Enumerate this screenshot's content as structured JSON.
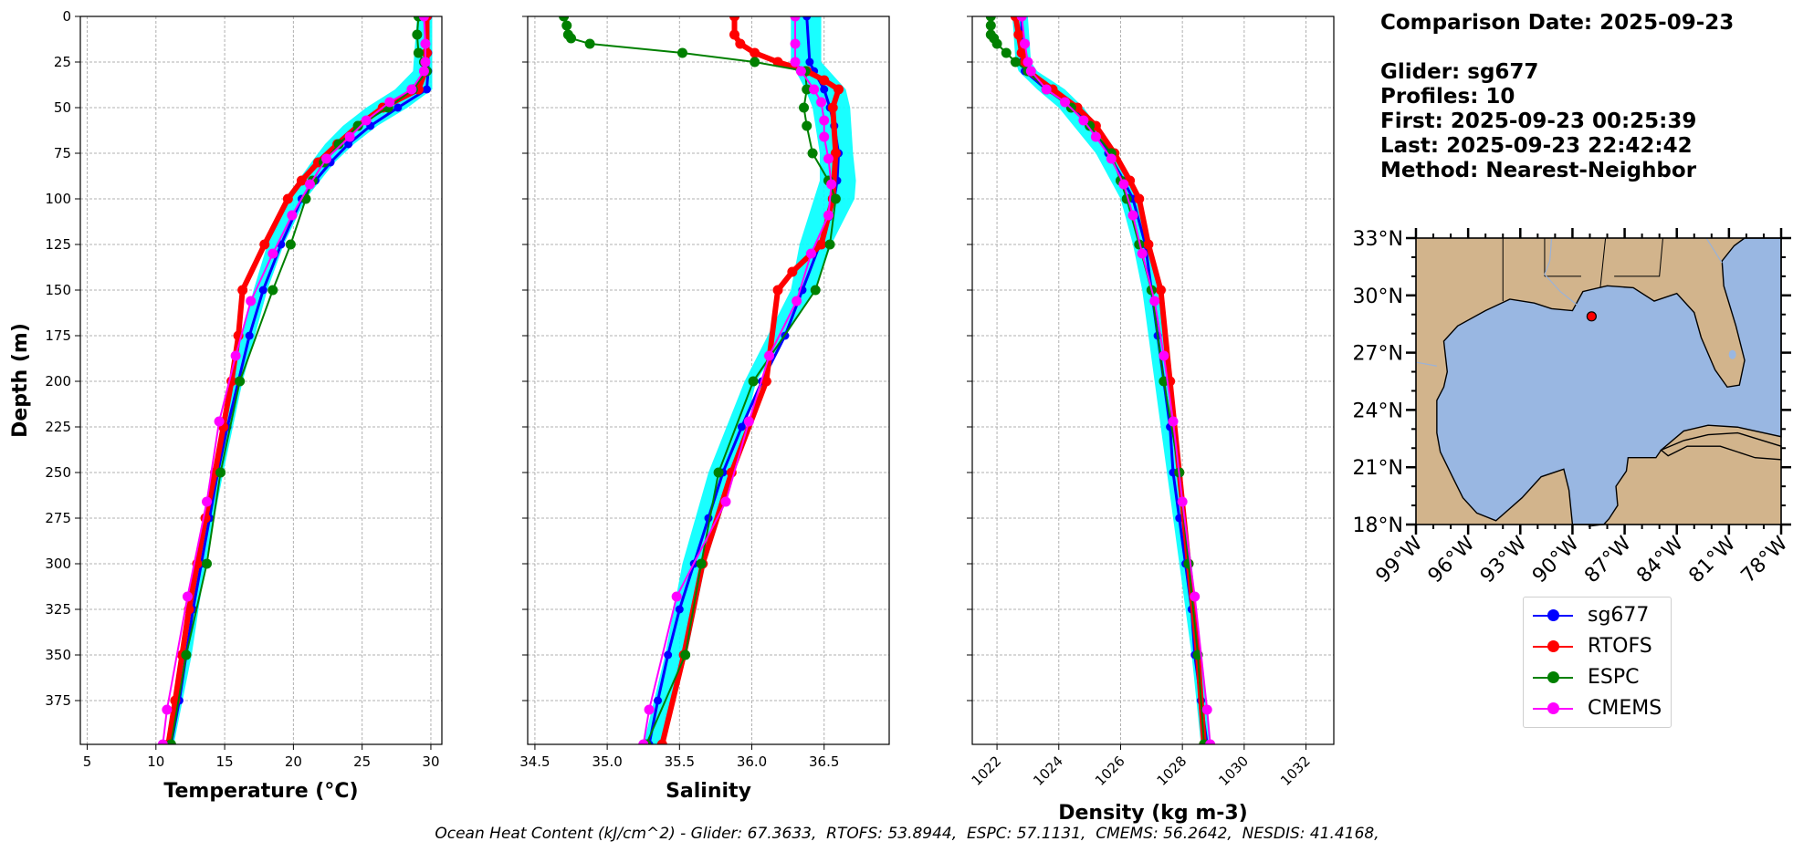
{
  "info": {
    "comparison_date": "Comparison Date: 2025-09-23",
    "glider": "Glider: sg677",
    "profiles": "Profiles: 10",
    "first": "First: 2025-09-23 00:25:39",
    "last": "Last: 2025-09-23 22:42:42",
    "method": "Method: Nearest-Neighbor"
  },
  "footer": "Ocean Heat Content (kJ/cm^2) - Glider: 67.3633,  RTOFS: 53.8944,  ESPC: 57.1131,  CMEMS: 56.2642,  NESDIS: 41.4168,",
  "legend": [
    {
      "name": "sg677",
      "color": "#0000ff"
    },
    {
      "name": "RTOFS",
      "color": "#ff0000"
    },
    {
      "name": "ESPC",
      "color": "#008000"
    },
    {
      "name": "CMEMS",
      "color": "#ff00ff"
    }
  ],
  "map": {
    "lat_ticks": [
      "33°N",
      "30°N",
      "27°N",
      "24°N",
      "21°N",
      "18°N"
    ],
    "lon_ticks": [
      "99°W",
      "96°W",
      "93°W",
      "90°W",
      "87°W",
      "84°W",
      "81°W",
      "78°W"
    ],
    "lon_range": [
      -99,
      -78
    ],
    "lat_range": [
      18,
      33
    ],
    "land_color": "#d2b48c",
    "ocean_color": "#99b7e2",
    "glider_position": {
      "lon": -88.9,
      "lat": 28.9
    }
  },
  "chart_data": [
    {
      "type": "line",
      "xlabel": "Temperature (°C)",
      "ylabel": "Depth (m)",
      "xlim": [
        4.5,
        30.8
      ],
      "ylim": [
        399,
        0
      ],
      "xticks": [
        5,
        10,
        15,
        20,
        25,
        30
      ],
      "yticks": [
        0,
        25,
        50,
        75,
        100,
        125,
        150,
        175,
        200,
        225,
        250,
        275,
        300,
        325,
        350,
        375
      ],
      "grid": true,
      "glider_envelope": {
        "depth": [
          0,
          30,
          40,
          50,
          60,
          70,
          80,
          100,
          125,
          150,
          200,
          250,
          300,
          350,
          399
        ],
        "min": [
          29.0,
          28.7,
          27.4,
          25.3,
          23.6,
          22.3,
          21.3,
          19.4,
          18.1,
          17.1,
          15.4,
          14.2,
          13.0,
          12.0,
          10.7
        ],
        "max": [
          30.1,
          30.1,
          30.1,
          28.3,
          26.1,
          24.4,
          23.0,
          20.9,
          19.3,
          18.1,
          16.3,
          14.9,
          13.6,
          12.6,
          11.3
        ]
      },
      "series": [
        {
          "name": "sg677",
          "depth": [
            0,
            20,
            30,
            40,
            50,
            60,
            70,
            80,
            90,
            100,
            125,
            150,
            175,
            200,
            225,
            250,
            275,
            300,
            325,
            350,
            375,
            399
          ],
          "values": [
            29.8,
            29.8,
            29.8,
            29.7,
            27.6,
            25.6,
            24.0,
            22.7,
            21.6,
            20.6,
            19.1,
            17.8,
            16.8,
            16.0,
            15.2,
            14.5,
            13.9,
            13.3,
            12.7,
            12.2,
            11.7,
            11.1
          ]
        },
        {
          "name": "RTOFS",
          "depth": [
            0,
            20,
            30,
            40,
            50,
            60,
            70,
            80,
            90,
            100,
            125,
            150,
            175,
            200,
            225,
            250,
            275,
            300,
            325,
            350,
            375,
            399
          ],
          "values": [
            29.7,
            29.7,
            29.6,
            29.1,
            26.5,
            24.7,
            23.2,
            21.8,
            20.6,
            19.6,
            17.9,
            16.3,
            16.0,
            15.5,
            14.9,
            14.3,
            13.6,
            13.0,
            12.4,
            11.9,
            11.4,
            10.9
          ]
        },
        {
          "name": "ESPC",
          "depth": [
            0,
            10,
            20,
            25,
            30,
            40,
            50,
            60,
            70,
            80,
            90,
            100,
            125,
            150,
            200,
            250,
            300,
            350,
            399
          ],
          "values": [
            29.1,
            29.0,
            29.1,
            29.5,
            29.7,
            28.7,
            26.9,
            24.7,
            23.3,
            22.2,
            21.4,
            20.9,
            19.8,
            18.5,
            16.1,
            14.7,
            13.7,
            12.2,
            11.1
          ]
        },
        {
          "name": "CMEMS",
          "depth": [
            0,
            15,
            25,
            30,
            40,
            47,
            57,
            66,
            78,
            92,
            109,
            130,
            156,
            186,
            222,
            266,
            318,
            380,
            399
          ],
          "values": [
            29.5,
            29.6,
            29.6,
            29.5,
            28.6,
            27.0,
            25.3,
            24.1,
            22.4,
            21.2,
            19.9,
            18.5,
            16.9,
            15.8,
            14.6,
            13.7,
            12.3,
            10.8,
            10.5
          ]
        }
      ]
    },
    {
      "type": "line",
      "xlabel": "Salinity",
      "ylabel": "",
      "xlim": [
        34.45,
        36.95
      ],
      "ylim": [
        399,
        0
      ],
      "xticks": [
        34.5,
        35.0,
        35.5,
        36.0,
        36.5
      ],
      "xticklabels": [
        "34.5",
        "35.0",
        "35.5",
        "36.0",
        "36.5"
      ],
      "grid": true,
      "glider_envelope": {
        "depth": [
          0,
          25,
          40,
          50,
          75,
          90,
          100,
          125,
          150,
          200,
          250,
          300,
          350,
          399
        ],
        "min": [
          36.27,
          36.27,
          36.37,
          36.42,
          36.47,
          36.47,
          36.43,
          36.33,
          36.27,
          35.95,
          35.7,
          35.52,
          35.4,
          35.25
        ],
        "max": [
          36.48,
          36.48,
          36.65,
          36.68,
          36.7,
          36.72,
          36.71,
          36.55,
          36.44,
          36.03,
          35.88,
          35.68,
          35.55,
          35.38
        ]
      },
      "series": [
        {
          "name": "sg677",
          "depth": [
            0,
            25,
            30,
            40,
            50,
            60,
            75,
            90,
            100,
            110,
            125,
            150,
            175,
            200,
            225,
            250,
            275,
            300,
            325,
            350,
            375,
            399
          ],
          "values": [
            36.38,
            36.4,
            36.43,
            36.5,
            36.54,
            36.57,
            36.6,
            36.59,
            36.57,
            36.53,
            36.47,
            36.35,
            36.23,
            36.07,
            35.93,
            35.8,
            35.7,
            35.6,
            35.5,
            35.42,
            35.35,
            35.29
          ]
        },
        {
          "name": "RTOFS",
          "depth": [
            0,
            10,
            15,
            20,
            25,
            30,
            35,
            40,
            50,
            75,
            100,
            125,
            140,
            150,
            200,
            250,
            300,
            350,
            399
          ],
          "values": [
            35.88,
            35.88,
            35.92,
            36.02,
            36.18,
            36.38,
            36.5,
            36.6,
            36.56,
            36.58,
            36.56,
            36.48,
            36.28,
            36.18,
            36.1,
            35.86,
            35.66,
            35.53,
            35.38
          ]
        },
        {
          "name": "ESPC",
          "depth": [
            0,
            5,
            10,
            12,
            15,
            20,
            25,
            30,
            40,
            50,
            60,
            75,
            90,
            100,
            125,
            150,
            200,
            250,
            300,
            350,
            399
          ],
          "values": [
            34.7,
            34.72,
            34.73,
            34.75,
            34.88,
            35.52,
            36.02,
            36.37,
            36.38,
            36.36,
            36.38,
            36.42,
            36.53,
            36.58,
            36.54,
            36.44,
            36.01,
            35.77,
            35.65,
            35.54,
            35.27
          ]
        },
        {
          "name": "CMEMS",
          "depth": [
            0,
            15,
            25,
            30,
            40,
            47,
            57,
            66,
            78,
            92,
            109,
            130,
            156,
            186,
            222,
            266,
            318,
            380,
            399
          ],
          "values": [
            36.3,
            36.3,
            36.3,
            36.34,
            36.43,
            36.48,
            36.5,
            36.5,
            36.53,
            36.55,
            36.53,
            36.41,
            36.31,
            36.12,
            35.98,
            35.82,
            35.48,
            35.29,
            35.25
          ]
        }
      ]
    },
    {
      "type": "line",
      "xlabel": "Density (kg m-3)",
      "ylabel": "",
      "xlim": [
        1021.2,
        1032.9
      ],
      "ylim": [
        399,
        0
      ],
      "xticks": [
        1022,
        1024,
        1026,
        1028,
        1030,
        1032
      ],
      "grid": true,
      "glider_envelope": {
        "depth": [
          0,
          25,
          30,
          40,
          50,
          75,
          100,
          125,
          150,
          200,
          250,
          300,
          350,
          399
        ],
        "min": [
          1022.5,
          1022.6,
          1022.7,
          1023.3,
          1024.0,
          1025.2,
          1026.0,
          1026.4,
          1026.7,
          1027.1,
          1027.5,
          1027.9,
          1028.3,
          1028.6
        ],
        "max": [
          1023.0,
          1023.1,
          1023.3,
          1024.2,
          1024.8,
          1025.9,
          1026.5,
          1026.9,
          1027.2,
          1027.6,
          1027.9,
          1028.3,
          1028.6,
          1028.9
        ]
      },
      "series": [
        {
          "name": "sg677",
          "depth": [
            0,
            25,
            30,
            40,
            50,
            60,
            75,
            90,
            100,
            125,
            150,
            175,
            200,
            225,
            250,
            275,
            300,
            325,
            350,
            375,
            399
          ],
          "values": [
            1022.8,
            1022.8,
            1022.9,
            1023.6,
            1024.5,
            1025.0,
            1025.6,
            1026.1,
            1026.4,
            1026.8,
            1027.0,
            1027.2,
            1027.4,
            1027.6,
            1027.7,
            1027.9,
            1028.1,
            1028.3,
            1028.4,
            1028.6,
            1028.8
          ]
        },
        {
          "name": "RTOFS",
          "depth": [
            0,
            10,
            20,
            25,
            30,
            40,
            50,
            60,
            75,
            90,
            100,
            125,
            150,
            200,
            250,
            300,
            350,
            399
          ],
          "values": [
            1022.6,
            1022.7,
            1022.8,
            1022.9,
            1023.0,
            1023.8,
            1024.6,
            1025.2,
            1025.8,
            1026.3,
            1026.6,
            1026.9,
            1027.3,
            1027.6,
            1027.9,
            1028.2,
            1028.5,
            1028.7
          ]
        },
        {
          "name": "ESPC",
          "depth": [
            0,
            5,
            10,
            12,
            15,
            20,
            25,
            30,
            40,
            50,
            60,
            75,
            90,
            100,
            125,
            150,
            200,
            250,
            300,
            350,
            399
          ],
          "values": [
            1021.8,
            1021.8,
            1021.8,
            1021.9,
            1022.0,
            1022.3,
            1022.6,
            1023.0,
            1023.6,
            1024.4,
            1025.0,
            1025.7,
            1026.0,
            1026.2,
            1026.6,
            1027.0,
            1027.4,
            1027.9,
            1028.2,
            1028.5,
            1028.7
          ]
        },
        {
          "name": "CMEMS",
          "depth": [
            0,
            15,
            25,
            30,
            40,
            47,
            57,
            66,
            78,
            92,
            109,
            130,
            156,
            186,
            222,
            266,
            318,
            380,
            399
          ],
          "values": [
            1022.8,
            1022.9,
            1023.0,
            1023.1,
            1023.6,
            1024.2,
            1024.8,
            1025.2,
            1025.7,
            1026.1,
            1026.4,
            1026.7,
            1027.1,
            1027.4,
            1027.7,
            1028.0,
            1028.4,
            1028.8,
            1028.9
          ]
        }
      ]
    }
  ]
}
